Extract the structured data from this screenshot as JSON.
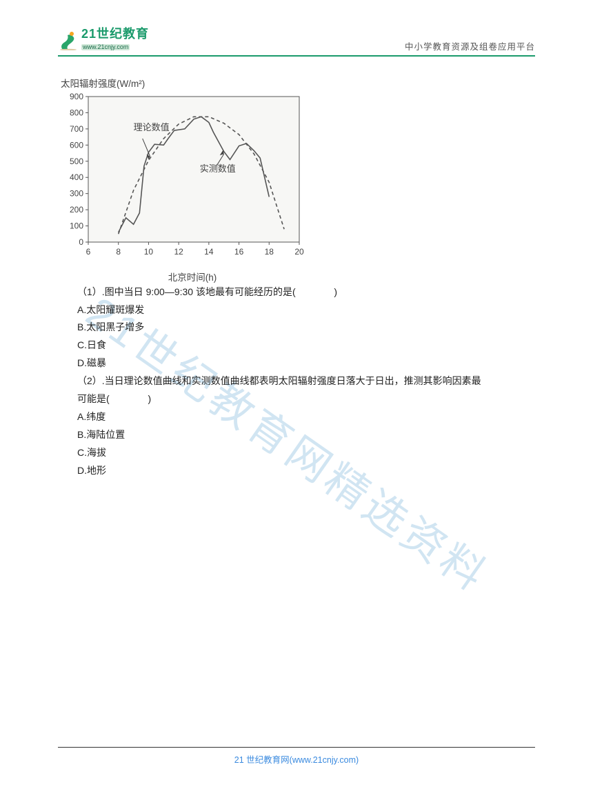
{
  "header": {
    "logo_cn": "21世纪教育",
    "logo_url": "www.21cnjy.com",
    "right_text": "中小学教育资源及组卷应用平台"
  },
  "chart": {
    "title": "太阳辐射强度(W/m²)",
    "xlabel": "北京时间(h)",
    "type": "line",
    "ylim": [
      0,
      900
    ],
    "xlim": [
      6,
      20
    ],
    "ytick_step": 100,
    "xtick_step": 2,
    "yticks": [
      "0",
      "100",
      "200",
      "300",
      "400",
      "500",
      "600",
      "700",
      "800",
      "900"
    ],
    "xticks": [
      "6",
      "8",
      "10",
      "12",
      "14",
      "16",
      "18",
      "20"
    ],
    "background_color": "#f7f7f5",
    "axis_color": "#555555",
    "grid_color": "#e0e0e0",
    "tick_fontsize": 12,
    "label_fontsize": 13,
    "annotation1": "理论数值",
    "annotation2": "实测数值",
    "series": {
      "theory": {
        "style": "dashed",
        "color": "#555555",
        "width": 1.6,
        "points": [
          [
            8,
            50
          ],
          [
            9,
            320
          ],
          [
            10,
            505
          ],
          [
            11,
            640
          ],
          [
            12,
            730
          ],
          [
            13,
            775
          ],
          [
            14,
            775
          ],
          [
            15,
            735
          ],
          [
            16,
            665
          ],
          [
            17,
            545
          ],
          [
            18,
            370
          ],
          [
            19,
            80
          ]
        ]
      },
      "measured": {
        "style": "solid",
        "color": "#555555",
        "width": 1.6,
        "points": [
          [
            8,
            60
          ],
          [
            8.5,
            150
          ],
          [
            9,
            110
          ],
          [
            9.4,
            180
          ],
          [
            9.7,
            470
          ],
          [
            10,
            555
          ],
          [
            10.4,
            605
          ],
          [
            11,
            600
          ],
          [
            11.3,
            640
          ],
          [
            11.7,
            690
          ],
          [
            12.4,
            700
          ],
          [
            13,
            760
          ],
          [
            13.5,
            775
          ],
          [
            14,
            740
          ],
          [
            14.3,
            680
          ],
          [
            15,
            560
          ],
          [
            15.4,
            510
          ],
          [
            16,
            595
          ],
          [
            16.5,
            610
          ],
          [
            17,
            565
          ],
          [
            17.4,
            520
          ],
          [
            18,
            280
          ]
        ]
      }
    }
  },
  "q1": {
    "stem": "（1）.图中当日 9:00—9:30 该地最有可能经历的是(",
    "close": ")",
    "opts": {
      "A": "A.太阳耀斑爆发",
      "B": "B.太阳黑子增多",
      "C": "C.日食",
      "D": "D.磁暴"
    }
  },
  "q2": {
    "stem_a": "（2）.当日理论数值曲线和实测数值曲线都表明太阳辐射强度日落大于日出，推测其影响因素最",
    "stem_b": "可能是(",
    "close": ")",
    "opts": {
      "A": "A.纬度",
      "B": "B.海陆位置",
      "C": "C.海拔",
      "D": "D.地形"
    }
  },
  "watermark": "21世纪教育网精选资料",
  "footer": {
    "text_a": "21 世纪教育网(",
    "url": "www.21cnjy.com",
    "text_b": ")"
  }
}
